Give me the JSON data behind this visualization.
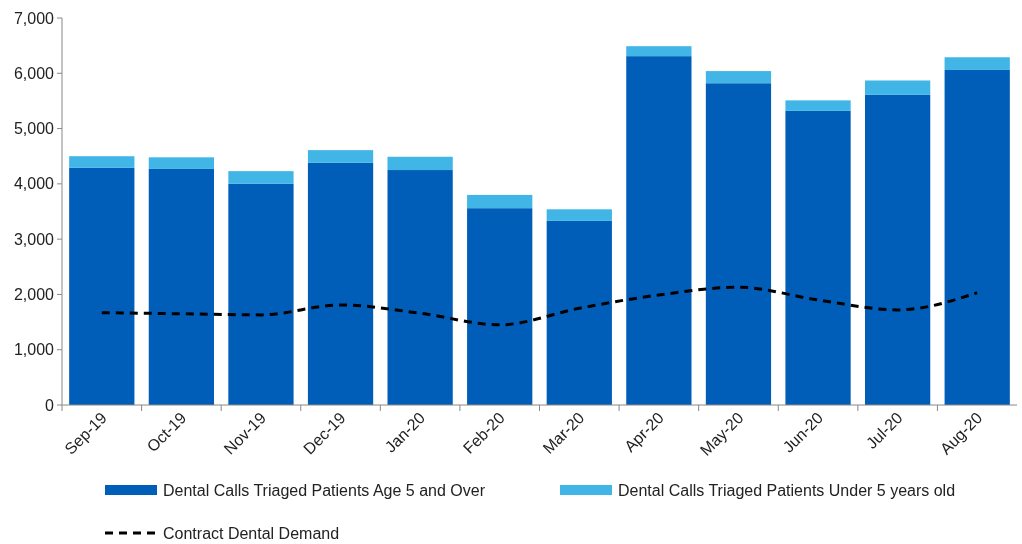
{
  "chart_data": {
    "type": "bar",
    "stacked": true,
    "categories": [
      "Sep-19",
      "Oct-19",
      "Nov-19",
      "Dec-19",
      "Jan-20",
      "Feb-20",
      "Mar-20",
      "Apr-20",
      "May-20",
      "Jun-20",
      "Jul-20",
      "Aug-20"
    ],
    "series": [
      {
        "name": "Dental Calls Triaged Patients Age 5 and Over",
        "color": "#005eb8",
        "values": [
          4290,
          4270,
          4000,
          4380,
          4250,
          3560,
          3330,
          6310,
          5820,
          5320,
          5610,
          6060
        ]
      },
      {
        "name": "Dental Calls Triaged Patients Under 5 years old",
        "color": "#41b6e6",
        "values": [
          210,
          210,
          230,
          230,
          240,
          240,
          210,
          180,
          220,
          190,
          260,
          230
        ]
      },
      {
        "name": "Contract Dental Demand",
        "type": "line",
        "color": "#000000",
        "line_style": "dashed",
        "marker": "none",
        "values": [
          1670,
          1650,
          1630,
          1810,
          1660,
          1450,
          1750,
          1990,
          2130,
          1900,
          1720,
          2030
        ]
      }
    ],
    "ylim": [
      0,
      7000
    ],
    "yticks": [
      {
        "value": 0,
        "label": "0"
      },
      {
        "value": 1000,
        "label": "1,000"
      },
      {
        "value": 2000,
        "label": "2,000"
      },
      {
        "value": 3000,
        "label": "3,000"
      },
      {
        "value": 4000,
        "label": "4,000"
      },
      {
        "value": 5000,
        "label": "5,000"
      },
      {
        "value": 6000,
        "label": "6,000"
      },
      {
        "value": 7000,
        "label": "7,000"
      }
    ],
    "grid": false,
    "legend": "bottom"
  }
}
